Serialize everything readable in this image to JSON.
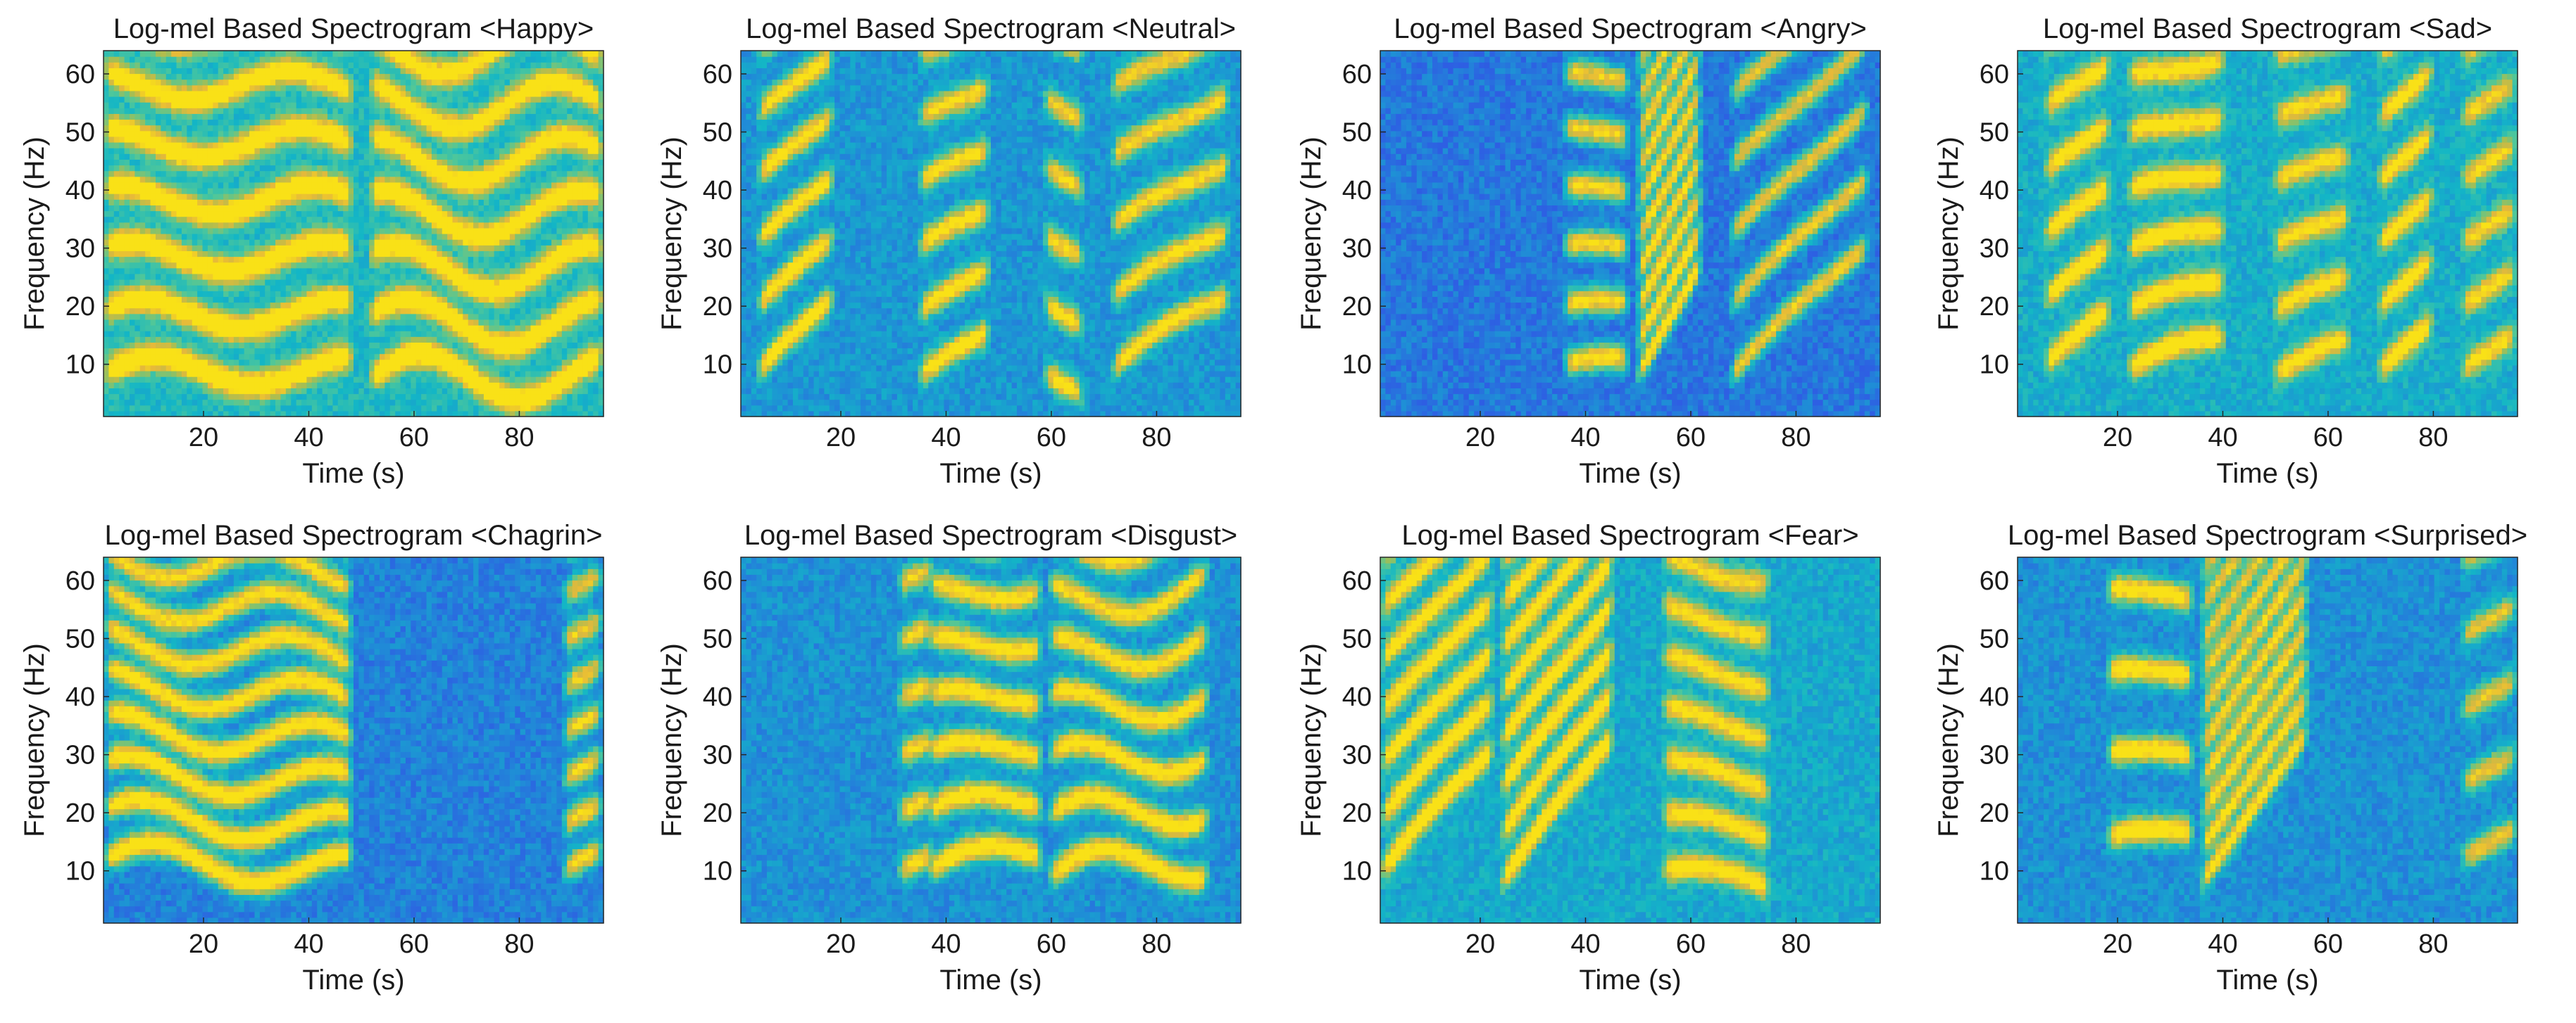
{
  "figure": {
    "panels_per_row": 4,
    "colormap": [
      "#352a87",
      "#2e5ee3",
      "#1f8ed6",
      "#13b6c6",
      "#4fc79a",
      "#a6be53",
      "#e6b93a",
      "#f9e117"
    ]
  },
  "chart_data": [
    {
      "type": "heatmap",
      "title": "Log-mel Based Spectrogram <Happy>",
      "emotion": "Happy",
      "xlabel": "Time (s)",
      "ylabel": "Frequency (Hz)",
      "xlim": [
        1,
        96
      ],
      "ylim": [
        1,
        64
      ],
      "xticks": [
        20,
        40,
        60,
        80
      ],
      "yticks": [
        10,
        20,
        30,
        40,
        50,
        60
      ],
      "background_level": 0.45,
      "segments": [
        {
          "t0": 1,
          "t1": 48,
          "f0": 8.5,
          "spacing": 10,
          "slope": 0,
          "wobble": 2.5,
          "strength": 0.95
        },
        {
          "t0": 52,
          "t1": 96,
          "f0": 7.5,
          "spacing": 9.5,
          "slope": 0,
          "wobble": 4,
          "strength": 0.92
        }
      ]
    },
    {
      "type": "heatmap",
      "title": "Log-mel Based Spectrogram <Neutral>",
      "emotion": "Neutral",
      "xlabel": "Time (s)",
      "ylabel": "Frequency (Hz)",
      "xlim": [
        1,
        96
      ],
      "ylim": [
        1,
        64
      ],
      "xticks": [
        20,
        40,
        60,
        80
      ],
      "yticks": [
        10,
        20,
        30,
        40,
        50,
        60
      ],
      "background_level": 0.32,
      "segments": [
        {
          "t0": 4,
          "t1": 18,
          "f0": 9,
          "spacing": 11,
          "slope": 0.8,
          "wobble": 1,
          "strength": 0.9
        },
        {
          "t0": 35,
          "t1": 48,
          "f0": 8,
          "spacing": 11,
          "slope": 0.5,
          "wobble": 1,
          "strength": 0.85
        },
        {
          "t0": 59,
          "t1": 66,
          "f0": 8,
          "spacing": 12,
          "slope": -0.5,
          "wobble": 0,
          "strength": 0.8
        },
        {
          "t0": 72,
          "t1": 94,
          "f0": 9,
          "spacing": 12,
          "slope": 0.6,
          "wobble": 1.5,
          "strength": 0.8
        }
      ]
    },
    {
      "type": "heatmap",
      "title": "Log-mel Based Spectrogram <Angry>",
      "emotion": "Angry",
      "xlabel": "Time (s)",
      "ylabel": "Frequency (Hz)",
      "xlim": [
        1,
        96
      ],
      "ylim": [
        1,
        64
      ],
      "xticks": [
        20,
        40,
        60,
        80
      ],
      "yticks": [
        10,
        20,
        30,
        40,
        50,
        60
      ],
      "background_level": 0.22,
      "segments": [
        {
          "t0": 36,
          "t1": 48,
          "f0": 10,
          "spacing": 10,
          "slope": 0,
          "wobble": 1,
          "strength": 0.9
        },
        {
          "t0": 50,
          "t1": 62,
          "f0": 8,
          "spacing": 6,
          "slope": 1.6,
          "wobble": 0,
          "strength": 1.0
        },
        {
          "t0": 68,
          "t1": 94,
          "f0": 8,
          "spacing": 12,
          "slope": 0.9,
          "wobble": 1,
          "strength": 0.8
        }
      ]
    },
    {
      "type": "heatmap",
      "title": "Log-mel Based Spectrogram <Sad>",
      "emotion": "Sad",
      "xlabel": "Time (s)",
      "ylabel": "Frequency (Hz)",
      "xlim": [
        1,
        96
      ],
      "ylim": [
        1,
        64
      ],
      "xticks": [
        20,
        40,
        60,
        80
      ],
      "yticks": [
        10,
        20,
        30,
        40,
        50,
        60
      ],
      "background_level": 0.4,
      "segments": [
        {
          "t0": 6,
          "t1": 18,
          "f0": 10,
          "spacing": 11,
          "slope": 0.7,
          "wobble": 1,
          "strength": 0.85
        },
        {
          "t0": 22,
          "t1": 40,
          "f0": 9,
          "spacing": 10,
          "slope": 0.3,
          "wobble": 1.5,
          "strength": 0.85
        },
        {
          "t0": 50,
          "t1": 64,
          "f0": 8,
          "spacing": 11,
          "slope": 0.4,
          "wobble": 1,
          "strength": 0.75
        },
        {
          "t0": 70,
          "t1": 80,
          "f0": 9,
          "spacing": 11,
          "slope": 0.8,
          "wobble": 0,
          "strength": 0.85
        },
        {
          "t0": 86,
          "t1": 96,
          "f0": 9,
          "spacing": 11,
          "slope": 0.6,
          "wobble": 0,
          "strength": 0.7
        }
      ]
    },
    {
      "type": "heatmap",
      "title": "Log-mel Based Spectrogram <Chagrin>",
      "emotion": "Chagrin",
      "xlabel": "Time (s)",
      "ylabel": "Frequency (Hz)",
      "xlim": [
        1,
        96
      ],
      "ylim": [
        1,
        64
      ],
      "xticks": [
        20,
        40,
        60,
        80
      ],
      "yticks": [
        10,
        20,
        30,
        40,
        50,
        60
      ],
      "background_level": 0.25,
      "segments": [
        {
          "t0": 1,
          "t1": 48,
          "f0": 12,
          "spacing": 7.5,
          "slope": -0.05,
          "wobble": 3,
          "strength": 1.0
        },
        {
          "t0": 89,
          "t1": 96,
          "f0": 10,
          "spacing": 8,
          "slope": 0.5,
          "wobble": 0,
          "strength": 0.85
        }
      ]
    },
    {
      "type": "heatmap",
      "title": "Log-mel Based Spectrogram <Disgust>",
      "emotion": "Disgust",
      "xlabel": "Time (s)",
      "ylabel": "Frequency (Hz)",
      "xlim": [
        1,
        96
      ],
      "ylim": [
        1,
        64
      ],
      "xticks": [
        20,
        40,
        60,
        80
      ],
      "yticks": [
        10,
        20,
        30,
        40,
        50,
        60
      ],
      "background_level": 0.3,
      "segments": [
        {
          "t0": 31,
          "t1": 37,
          "f0": 10,
          "spacing": 10,
          "slope": 0.4,
          "wobble": 0,
          "strength": 0.8
        },
        {
          "t0": 37,
          "t1": 58,
          "f0": 10,
          "spacing": 9.5,
          "slope": 0.15,
          "wobble": 2.5,
          "strength": 0.92
        },
        {
          "t0": 60,
          "t1": 90,
          "f0": 9,
          "spacing": 9.5,
          "slope": 0.1,
          "wobble": 3.5,
          "strength": 0.9
        }
      ]
    },
    {
      "type": "heatmap",
      "title": "Log-mel Based Spectrogram <Fear>",
      "emotion": "Fear",
      "xlabel": "Time (s)",
      "ylabel": "Frequency (Hz)",
      "xlim": [
        1,
        96
      ],
      "ylim": [
        1,
        64
      ],
      "xticks": [
        20,
        40,
        60,
        80
      ],
      "yticks": [
        10,
        20,
        30,
        40,
        50,
        60
      ],
      "background_level": 0.38,
      "segments": [
        {
          "t0": 1,
          "t1": 22,
          "f0": 10,
          "spacing": 9,
          "slope": 1.0,
          "wobble": 1,
          "strength": 0.9
        },
        {
          "t0": 24,
          "t1": 45,
          "f0": 8,
          "spacing": 8,
          "slope": 1.2,
          "wobble": 1,
          "strength": 0.95
        },
        {
          "t0": 55,
          "t1": 75,
          "f0": 10,
          "spacing": 9,
          "slope": -0.15,
          "wobble": 1.5,
          "strength": 0.8
        }
      ]
    },
    {
      "type": "heatmap",
      "title": "Log-mel Based Spectrogram <Surprised>",
      "emotion": "Surprised",
      "xlabel": "Time (s)",
      "ylabel": "Frequency (Hz)",
      "xlim": [
        1,
        96
      ],
      "ylim": [
        1,
        64
      ],
      "xticks": [
        20,
        40,
        60,
        80
      ],
      "yticks": [
        10,
        20,
        30,
        40,
        50,
        60
      ],
      "background_level": 0.3,
      "segments": [
        {
          "t0": 18,
          "t1": 34,
          "f0": 16,
          "spacing": 14,
          "slope": 0,
          "wobble": 1,
          "strength": 0.95
        },
        {
          "t0": 36,
          "t1": 56,
          "f0": 8,
          "spacing": 6,
          "slope": 1.3,
          "wobble": 0,
          "strength": 0.85
        },
        {
          "t0": 86,
          "t1": 96,
          "f0": 12,
          "spacing": 13,
          "slope": 0.5,
          "wobble": 0,
          "strength": 0.7
        }
      ]
    }
  ]
}
